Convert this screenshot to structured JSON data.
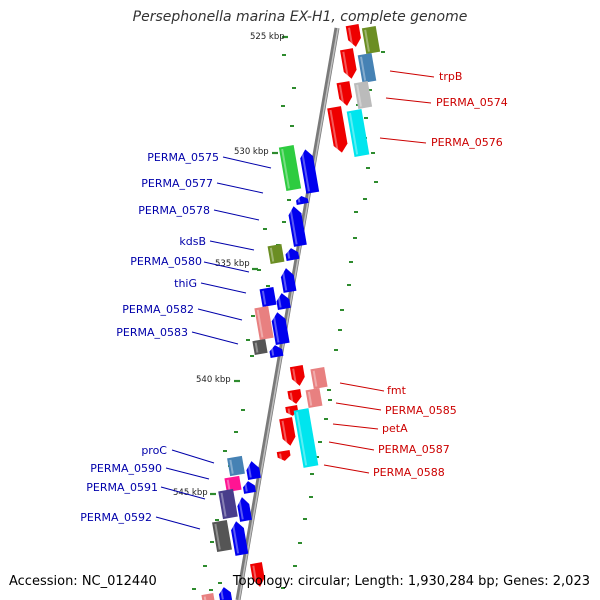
{
  "title": "Persephonella marina EX-H1, complete genome",
  "footer": {
    "accession": "Accession: NC_012440",
    "topology": "Topology: circular; Length: 1,930,284 bp; Genes: 2,023"
  },
  "ruler": {
    "kbp_labels": [
      "525 kbp",
      "530 kbp",
      "535 kbp",
      "540 kbp",
      "545 kbp"
    ]
  },
  "genes_plus_strand": [
    "trpB",
    "PERMA_0574",
    "PERMA_0576",
    "fmt",
    "PERMA_0585",
    "petA",
    "PERMA_0587",
    "PERMA_0588"
  ],
  "genes_minus_strand": [
    "PERMA_0575",
    "PERMA_0577",
    "PERMA_0578",
    "kdsB",
    "PERMA_0580",
    "thiG",
    "PERMA_0582",
    "PERMA_0583",
    "proC",
    "PERMA_0590",
    "PERMA_0591",
    "PERMA_0592"
  ],
  "colors": {
    "plus_label": "#cc0000",
    "minus_label": "#0000aa",
    "backbone": "#8c8c8c",
    "cds": "#0000ee",
    "cds_alt": "#ee0000",
    "tick": "#2e8b2e"
  }
}
